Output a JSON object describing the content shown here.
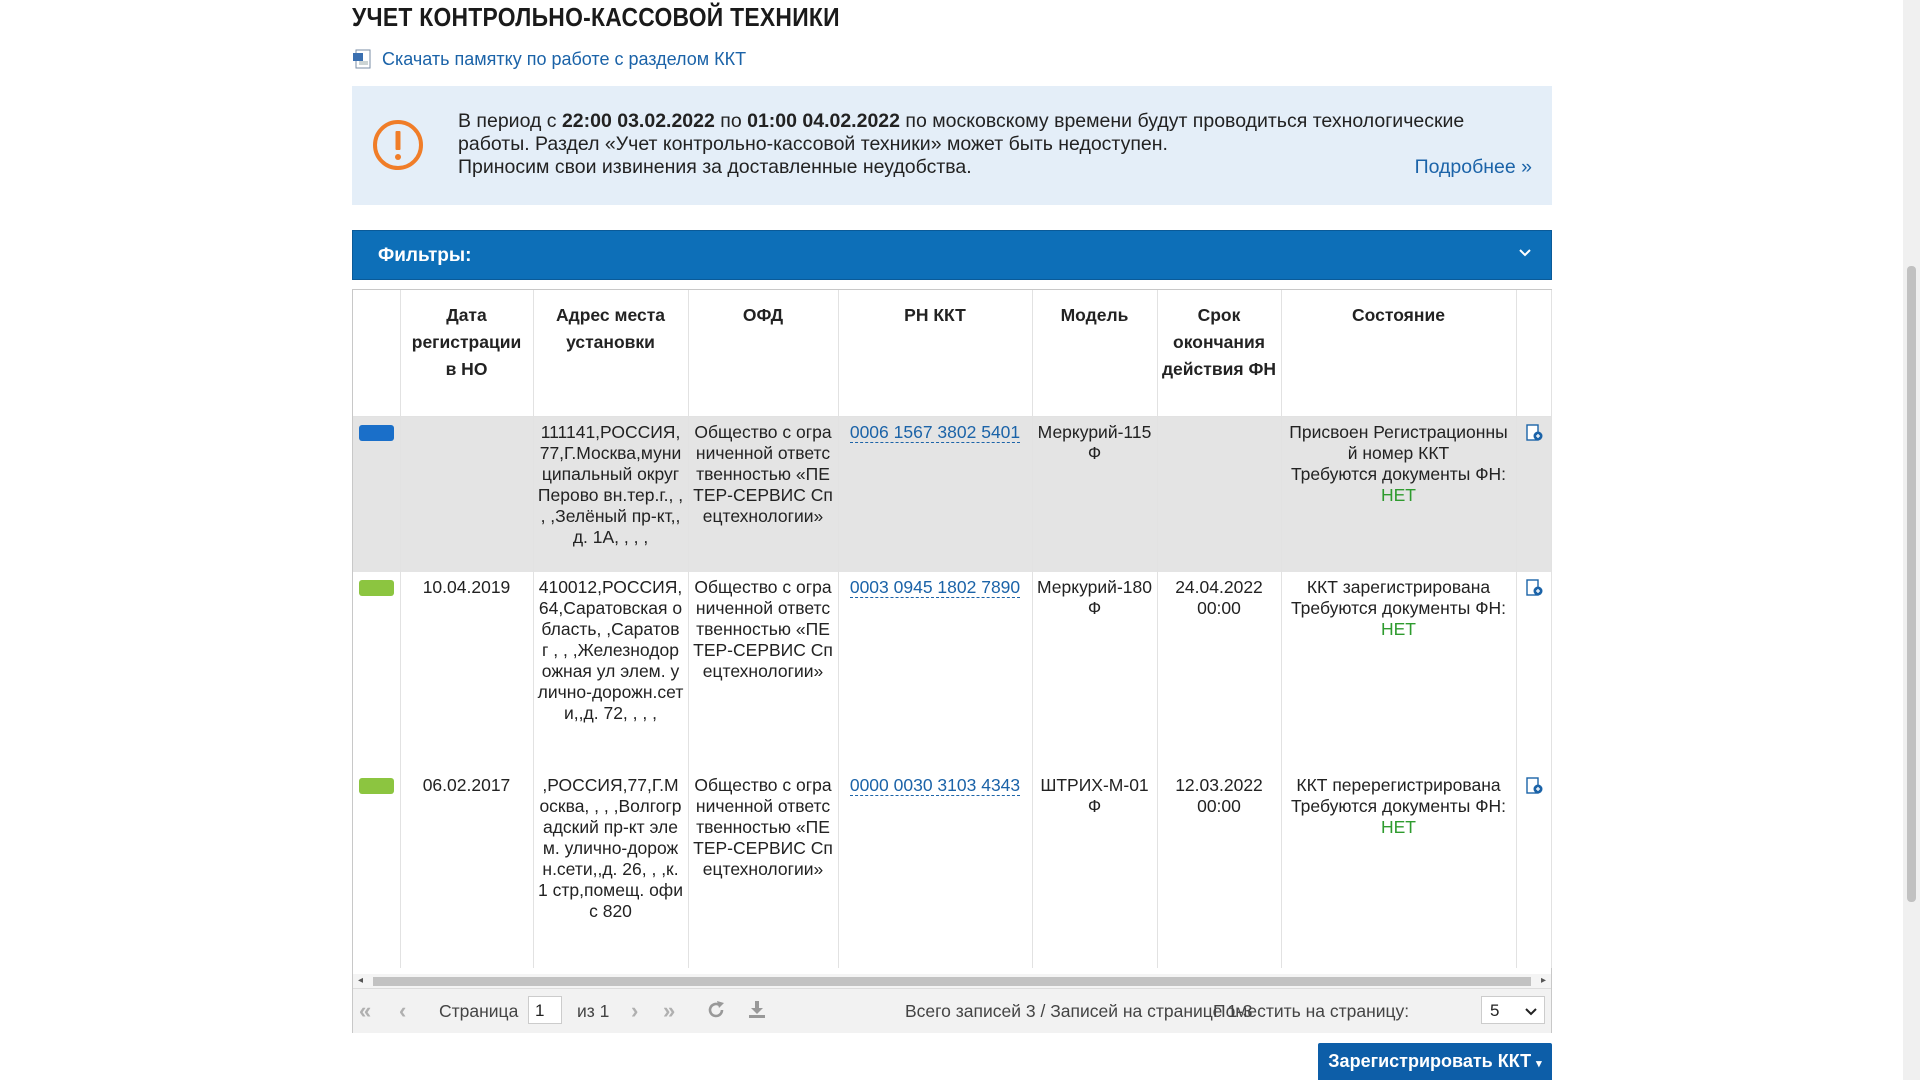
{
  "page": {
    "title": "УЧЕТ КОНТРОЛЬНО-КАССОВОЙ ТЕХНИКИ",
    "memo_link": "Скачать памятку по работе с разделом ККТ"
  },
  "notice": {
    "p1": "В период с ",
    "from": "22:00 03.02.2022",
    "p2": " по ",
    "to": "01:00 04.02.2022",
    "p3": " по московскому времени будут проводиться технологические работы. Раздел «Учет контрольно-кассовой техники» может быть недоступен.",
    "p4": "Приносим свои извинения за доставленные неудобства.",
    "more": "Подробнее »"
  },
  "filters": {
    "label": "Фильтры:"
  },
  "table": {
    "columns": {
      "reg_date": "Дата регистрации в НО",
      "address": "Адрес места установки",
      "ofd": "ОФД",
      "rn": "РН ККТ",
      "model": "Модель",
      "fn_end": "Срок окончания действия ФН",
      "state": "Состояние"
    },
    "rows": [
      {
        "marker_color": "#1a6fc9",
        "reg_date": "",
        "address": "111141,РОССИЯ,77,Г.Москва,муниципальный округ Перово вн.тер.г., , , ,Зелёный пр-кт,,д. 1А, , , ,",
        "ofd": "Общество с ограниченной ответственностью «ПЕТЕР-СЕРВИС Спецтехнологии»",
        "rn": "0006 1567 3802 5401",
        "model": "Меркурий-115Ф",
        "fn_end": "",
        "state": "Присвоен Регистрационный номер ККТ",
        "docs_label": "Требуются документы ФН:",
        "docs_value": "НЕТ"
      },
      {
        "marker_color": "#8cc540",
        "reg_date": "10.04.2019",
        "address": "410012,РОССИЯ,64,Саратовская область, ,Саратов г , , ,Железнодорожная ул элем. улично-дорожн.сети,,д. 72, , , ,",
        "ofd": "Общество с ограниченной ответственностью «ПЕТЕР-СЕРВИС Спецтехнологии»",
        "rn": "0003 0945 1802 7890",
        "model": "Меркурий-180Ф",
        "fn_end": "24.04.2022 00:00",
        "state": "ККТ зарегистрирована",
        "docs_label": "Требуются документы ФН:",
        "docs_value": "НЕТ"
      },
      {
        "marker_color": "#8cc540",
        "reg_date": "06.02.2017",
        "address": ",РОССИЯ,77,Г.Москва, , , ,Волгоградский пр-кт элем. улично-дорожн.сети,,д. 26, , ,к. 1 стр,помещ. офис 820",
        "ofd": "Общество с ограниченной ответственностью «ПЕТЕР-СЕРВИС Спецтехнологии»",
        "rn": "0000 0030 3103 4343",
        "model": "ШТРИХ-М-01Ф",
        "fn_end": "12.03.2022 00:00",
        "state": "ККТ перерегистрирована",
        "docs_label": "Требуются документы ФН:",
        "docs_value": "НЕТ"
      }
    ]
  },
  "pager": {
    "page_label": "Страница",
    "page_value": "1",
    "of_label": "из 1",
    "summary": "Всего записей 3 / Записей на странице 1-3",
    "per_page_label": "Поместить на страницу:",
    "per_page_value": "5"
  },
  "actions": {
    "register_label": "Зарегистрировать ККТ"
  },
  "icons": [
    "document-icon",
    "warning-icon",
    "chevron-down-icon",
    "kkt-card-icon",
    "first-page-icon",
    "prev-page-icon",
    "next-page-icon",
    "last-page-icon",
    "refresh-icon",
    "download-icon"
  ]
}
